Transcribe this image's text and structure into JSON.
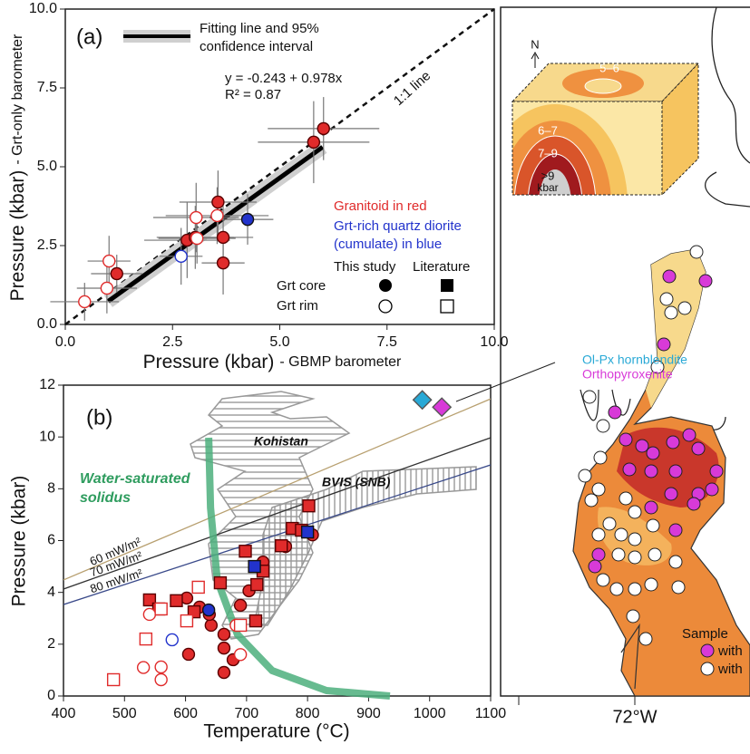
{
  "chart_data": [
    {
      "type": "scatter",
      "panel_label": "(a)",
      "x_label": "Pressure (kbar)",
      "x_label_note": "- GBMP barometer",
      "y_label": "Pressure (kbar)",
      "y_label_note": "- Grt-only barometer",
      "xlim": [
        0,
        10
      ],
      "ylim": [
        0,
        10
      ],
      "xticks": [
        {
          "value": 0,
          "label": "0.0"
        },
        2.5,
        {
          "value": 5,
          "label": "5.0"
        },
        7.5,
        {
          "value": 10,
          "label": "10.0"
        }
      ],
      "yticks": [
        {
          "value": 0,
          "label": "0.0"
        },
        2.5,
        {
          "value": 5,
          "label": "5.0"
        },
        7.5,
        {
          "value": 10,
          "label": "10.0"
        }
      ],
      "series": [
        {
          "color": "#e02b2b",
          "marker": "circle",
          "filled": true,
          "x": [
            1.2,
            3.56,
            3.68,
            3.68,
            2.84,
            5.79,
            6.02,
            3.03
          ],
          "values": [
            1.61,
            3.88,
            2.76,
            1.95,
            2.67,
            5.78,
            6.21,
            2.76
          ],
          "xerr": [
            0.6,
            0.9,
            0.7,
            0.5,
            1.0,
            1.3,
            1.3,
            0.9
          ],
          "yerr": [
            0.6,
            1.0,
            1.0,
            1.0,
            1.2,
            1.3,
            1.0,
            1.0
          ]
        },
        {
          "color": "#e02b2b",
          "marker": "circle",
          "filled": false,
          "x": [
            1.02,
            0.97,
            0.45,
            3.05,
            3.54,
            3.07
          ],
          "values": [
            2.01,
            1.15,
            0.72,
            3.39,
            3.45,
            2.73
          ],
          "xerr": [
            0.5,
            0.7,
            0.8,
            1.0,
            1.2,
            0.9
          ],
          "yerr": [
            0.8,
            0.8,
            0.6,
            1.1,
            0.9,
            0.8
          ]
        },
        {
          "color": "#2233cc",
          "marker": "circle",
          "filled": true,
          "x": [
            4.25
          ],
          "values": [
            3.33
          ],
          "xerr": [
            0.6
          ],
          "yerr": [
            0.8
          ]
        },
        {
          "color": "#2233cc",
          "marker": "circle",
          "filled": false,
          "x": [
            2.7
          ],
          "values": [
            2.16
          ],
          "xerr": [
            0.5
          ],
          "yerr": [
            0.9
          ]
        }
      ],
      "fit": {
        "intercept": -0.243,
        "slope": 0.978,
        "xrange": [
          1.0,
          6.0
        ],
        "color": "#000000",
        "band_color": "#cfcfcf"
      },
      "annotations": {
        "equation": "y = -0.243 + 0.978x",
        "r2": "R² = 0.87",
        "one_to_one": "1:1 line"
      },
      "legend": {
        "fit": [
          "Fitting line and 95%",
          "confidence interval"
        ],
        "granitoid": "Granitoid in red",
        "diorite": [
          "Grt-rich quartz diorite",
          "(cumulate) in blue"
        ],
        "this_study": "This study",
        "literature": "Literature",
        "core": "Grt core",
        "rim": "Grt rim"
      }
    },
    {
      "type": "scatter",
      "panel_label": "(b)",
      "x_label": "Temperature (°C)",
      "y_label": "Pressure (kbar)",
      "xlim": [
        400,
        1100
      ],
      "ylim": [
        0,
        12
      ],
      "xticks": [
        400,
        500,
        600,
        700,
        800,
        900,
        1000,
        1100
      ],
      "yticks": [
        0,
        2,
        4,
        6,
        8,
        10,
        12
      ],
      "series": [
        {
          "color": "#e02b2b",
          "marker": "circle",
          "filled": true,
          "x": [
            602,
            623,
            642,
            663,
            663,
            690,
            704,
            727,
            764,
            808,
            605,
            663,
            678,
            639
          ],
          "values": [
            3.78,
            3.43,
            2.73,
            2.38,
            1.85,
            3.5,
            4.06,
            5.17,
            5.77,
            6.22,
            1.61,
            0.91,
            1.4,
            3.15
          ]
        },
        {
          "color": "#e02b2b",
          "marker": "square",
          "filled": true,
          "x": [
            541,
            556,
            585,
            614,
            657,
            698,
            717,
            715,
            727,
            757,
            775,
            802,
            790
          ],
          "values": [
            3.71,
            3.36,
            3.68,
            3.25,
            4.37,
            5.59,
            4.3,
            2.9,
            4.82,
            5.8,
            6.47,
            7.34,
            6.4
          ]
        },
        {
          "color": "#e02b2b",
          "marker": "circle",
          "filled": false,
          "x": [
            541,
            531,
            560,
            560,
            683,
            690
          ],
          "values": [
            3.15,
            1.1,
            1.12,
            0.63,
            2.73,
            1.6
          ]
        },
        {
          "color": "#e02b2b",
          "marker": "square",
          "filled": false,
          "x": [
            482,
            535,
            602,
            621,
            560,
            690
          ],
          "values": [
            0.63,
            2.2,
            2.9,
            4.2,
            3.36,
            2.73
          ]
        },
        {
          "color": "#2233cc",
          "marker": "circle",
          "filled": true,
          "x": [
            638
          ],
          "values": [
            3.32
          ]
        },
        {
          "color": "#2233cc",
          "marker": "square",
          "filled": true,
          "x": [
            713,
            800
          ],
          "values": [
            5.0,
            6.33
          ]
        },
        {
          "color": "#2233cc",
          "marker": "circle",
          "filled": false,
          "x": [
            578
          ],
          "values": [
            2.17
          ]
        },
        {
          "name": "Ol-Px hornblendite",
          "color": "#29a9d6",
          "marker": "diamond",
          "filled": true,
          "x": [
            988
          ],
          "values": [
            11.43
          ]
        },
        {
          "name": "Orthopyroxenite",
          "color": "#d83ad8",
          "marker": "diamond",
          "filled": true,
          "x": [
            1020
          ],
          "values": [
            11.15
          ]
        }
      ],
      "lines": [
        {
          "name": "60 mW/m²",
          "color": "#b8a070",
          "x": [
            400,
            1100
          ],
          "values": [
            4.48,
            11.47
          ]
        },
        {
          "name": "70 mW/m²",
          "color": "#333333",
          "x": [
            400,
            1100
          ],
          "values": [
            4.13,
            9.97
          ]
        },
        {
          "name": "80 mW/m²",
          "color": "#3a4a8a",
          "x": [
            400,
            1100
          ],
          "values": [
            3.53,
            8.92
          ]
        }
      ],
      "solidus": {
        "label": [
          "Water-saturated",
          "solidus"
        ],
        "color": "#4caf7d",
        "x": [
          638,
          641,
          652,
          685,
          742,
          831,
          935
        ],
        "values": [
          9.97,
          7.27,
          4.48,
          2.38,
          0.98,
          0.21,
          0
        ]
      },
      "fields": [
        "Kohistan",
        "BVIS (SNB)"
      ]
    }
  ],
  "map": {
    "north": "N",
    "contours": [
      "5–6",
      "6–7",
      "7–9",
      ">9"
    ],
    "kbar": "kbar",
    "longitude": "72°W",
    "legend": {
      "title": "Sample",
      "items": [
        "with",
        "with"
      ]
    }
  }
}
